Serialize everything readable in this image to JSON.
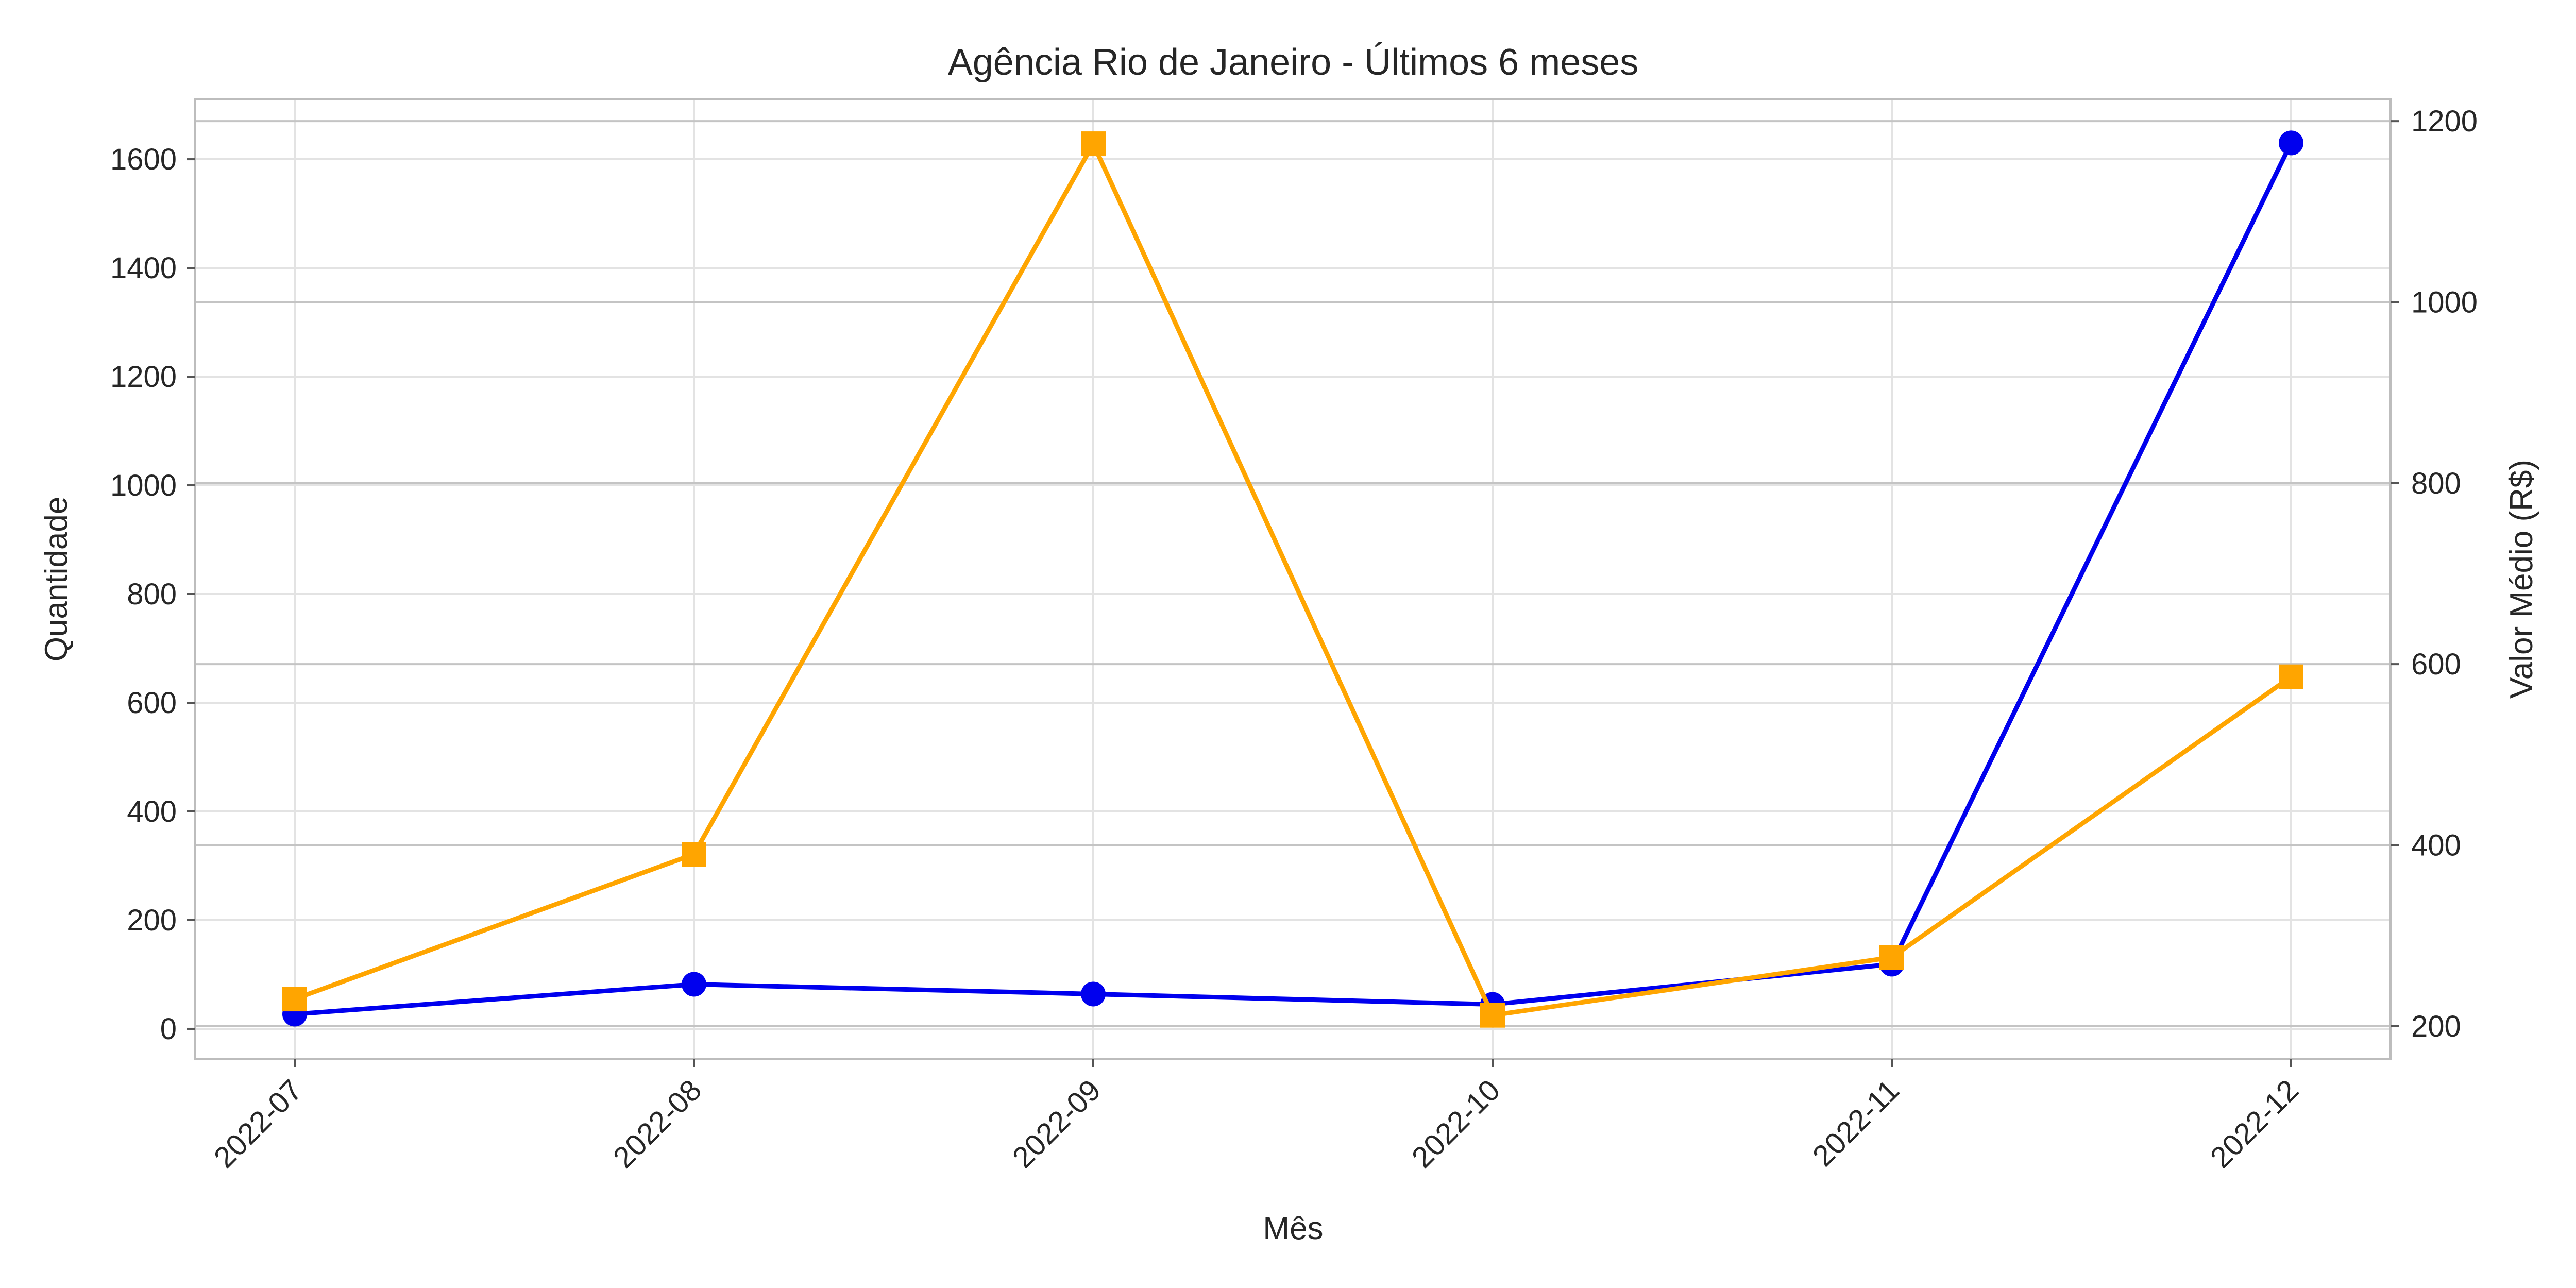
{
  "chart_data": {
    "type": "line",
    "title": "Agência Rio de Janeiro - Últimos 6 meses",
    "xlabel": "Mês",
    "ylabel": "Quantidade",
    "y2label": "Valor Médio (R$)",
    "categories": [
      "2022-07",
      "2022-08",
      "2022-09",
      "2022-10",
      "2022-11",
      "2022-12"
    ],
    "ylim": [
      -55,
      1710
    ],
    "y2lim": [
      164,
      1224
    ],
    "yticks": [
      0,
      200,
      400,
      600,
      800,
      1000,
      1200,
      1400,
      1600
    ],
    "y2ticks": [
      200,
      400,
      600,
      800,
      1000,
      1200
    ],
    "grid": true,
    "series": [
      {
        "axis": "left",
        "color": "#0000ee",
        "marker": "circle",
        "values": [
          27,
          82,
          64,
          45,
          119,
          1630
        ]
      },
      {
        "axis": "right",
        "color": "#ffa500",
        "marker": "square",
        "values": [
          230,
          390,
          1175,
          212,
          276,
          586
        ]
      }
    ]
  }
}
